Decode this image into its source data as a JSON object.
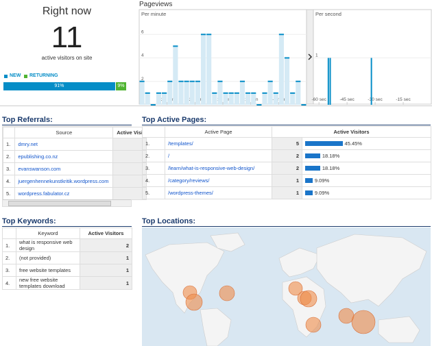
{
  "right_now": {
    "title": "Right now",
    "count": "11",
    "caption": "active visitors on site",
    "legend": {
      "new": "NEW",
      "returning": "RETURNING"
    },
    "split": {
      "new": "91%",
      "returning": "9%"
    }
  },
  "pageviews": {
    "title": "Pageviews",
    "per_minute": {
      "type": "bar",
      "label": "Per minute",
      "color": "#058dc7",
      "values": [
        2,
        1,
        0,
        1,
        1,
        2,
        5,
        2,
        2,
        2,
        2,
        6,
        6,
        1,
        2,
        1,
        1,
        1,
        2,
        1,
        1,
        0,
        1,
        2,
        1,
        6,
        4,
        1,
        2,
        0
      ],
      "xlim": [
        -30,
        0
      ],
      "ylim": [
        0,
        8
      ],
      "yticks": [
        2,
        4,
        6
      ],
      "xticks": [
        {
          "value": -25,
          "label": "-25 min"
        },
        {
          "value": -20,
          "label": "-20 min"
        },
        {
          "value": -15,
          "label": "-15 min"
        },
        {
          "value": -10,
          "label": "-10 min"
        },
        {
          "value": -5,
          "label": "-5 min"
        }
      ]
    },
    "per_second": {
      "type": "spike",
      "label": "Per second",
      "color": "#058dc7",
      "x": [
        -55,
        -54,
        -32
      ],
      "values": [
        1,
        1,
        1
      ],
      "xlim": [
        -63,
        0
      ],
      "ylim": [
        0,
        2
      ],
      "yticks": [
        1
      ],
      "xticks": [
        {
          "value": -60,
          "label": "-60 sec"
        },
        {
          "value": -45,
          "label": "-45 sec"
        },
        {
          "value": -30,
          "label": "-30 sec"
        },
        {
          "value": -15,
          "label": "-15 sec"
        }
      ]
    }
  },
  "referrals": {
    "title": "Top Referrals:",
    "columns": [
      "Source",
      "Active Visi"
    ],
    "rows": [
      [
        "1.",
        "dmry.net"
      ],
      [
        "2.",
        "epublishing.co.nz"
      ],
      [
        "3.",
        "evanswanson.com"
      ],
      [
        "4.",
        "juergenhennekunstkritik.wordpress.com"
      ],
      [
        "5.",
        "wordpress.fabulator.cz"
      ]
    ]
  },
  "active_pages": {
    "title": "Top Active Pages:",
    "columns": [
      "Active Page",
      "Active Visitors"
    ],
    "rows": [
      [
        "1.",
        "/templates/",
        "5",
        "45.45%"
      ],
      [
        "2.",
        "/",
        "2",
        "18.18%"
      ],
      [
        "3.",
        "/learn/what-is-responsive-web-design/",
        "2",
        "18.18%"
      ],
      [
        "4.",
        "/category/reviews/",
        "1",
        "9.09%"
      ],
      [
        "5.",
        "/wordpress-themes/",
        "1",
        "9.09%"
      ]
    ]
  },
  "keywords": {
    "title": "Top Keywords:",
    "columns": [
      "Keyword",
      "Active Visitors"
    ],
    "rows": [
      [
        "1.",
        "what is responsive web design",
        "2"
      ],
      [
        "2.",
        "(not provided)",
        "1"
      ],
      [
        "3.",
        "free website templates",
        "1"
      ],
      [
        "4.",
        "new free website templates download",
        "1"
      ]
    ]
  },
  "locations": {
    "title": "Top Locations:"
  }
}
